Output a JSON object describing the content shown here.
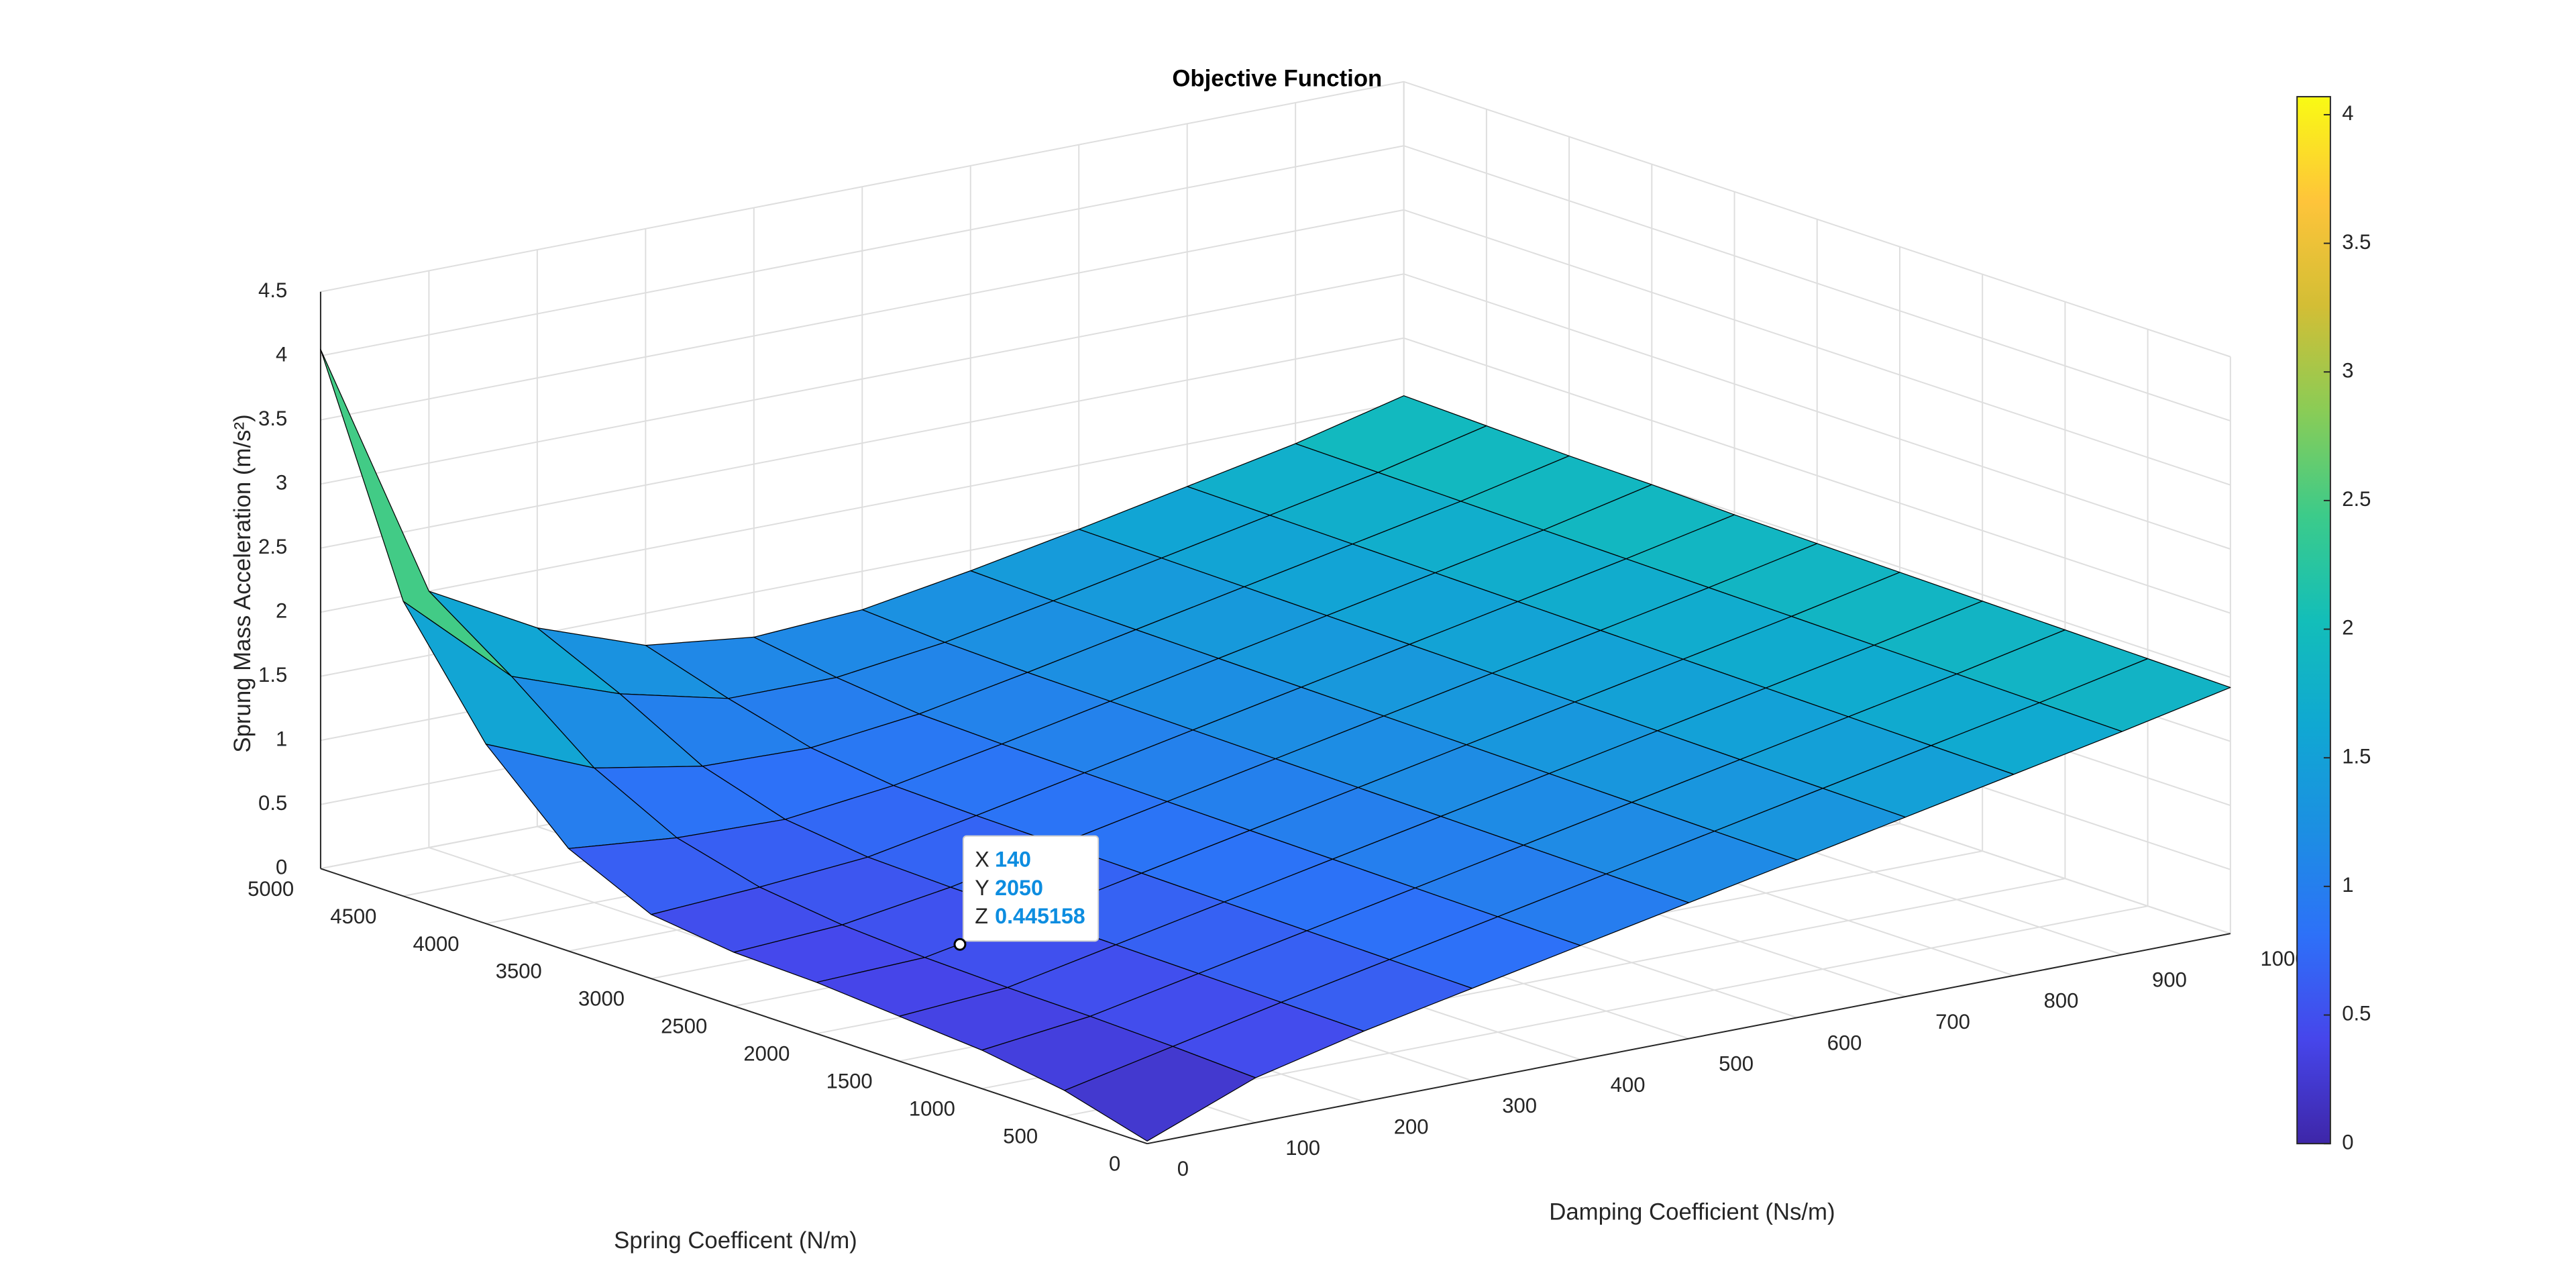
{
  "chart_data": {
    "type": "surface",
    "title": "Objective Function",
    "xlabel": "Damping Coefficient (Ns/m)",
    "ylabel": "Spring Coefficent (N/m)",
    "zlabel": "Sprung Mass Acceleration (m/s²)",
    "x": [
      0,
      100,
      200,
      300,
      400,
      500,
      600,
      700,
      800,
      900,
      1000
    ],
    "y": [
      0,
      500,
      1000,
      1500,
      2000,
      2500,
      3000,
      3500,
      4000,
      4500,
      5000
    ],
    "z": [
      [
        0.02,
        0.35,
        0.55,
        0.72,
        0.89,
        1.06,
        1.23,
        1.4,
        1.57,
        1.74,
        1.92
      ],
      [
        0.2,
        0.38,
        0.56,
        0.73,
        0.9,
        1.07,
        1.24,
        1.41,
        1.58,
        1.75,
        1.93
      ],
      [
        0.3,
        0.4,
        0.57,
        0.74,
        0.91,
        1.08,
        1.25,
        1.42,
        1.59,
        1.76,
        1.94
      ],
      [
        0.35,
        0.41,
        0.58,
        0.75,
        0.92,
        1.09,
        1.26,
        1.43,
        1.6,
        1.77,
        1.95
      ],
      [
        0.4,
        0.43,
        0.59,
        0.76,
        0.93,
        1.1,
        1.27,
        1.44,
        1.61,
        1.78,
        1.96
      ],
      [
        0.42,
        0.47,
        0.6,
        0.77,
        0.94,
        1.11,
        1.28,
        1.45,
        1.62,
        1.79,
        1.97
      ],
      [
        0.5,
        0.55,
        0.62,
        0.78,
        0.95,
        1.12,
        1.29,
        1.46,
        1.63,
        1.8,
        1.98
      ],
      [
        0.8,
        0.72,
        0.7,
        0.8,
        0.96,
        1.13,
        1.3,
        1.47,
        1.64,
        1.81,
        2.0
      ],
      [
        1.4,
        1.05,
        0.9,
        0.88,
        0.98,
        1.14,
        1.31,
        1.48,
        1.65,
        1.82,
        2.01
      ],
      [
        2.3,
        1.55,
        1.25,
        1.05,
        1.05,
        1.16,
        1.32,
        1.49,
        1.66,
        1.83,
        2.03
      ],
      [
        4.05,
        2.0,
        1.55,
        1.25,
        1.15,
        1.2,
        1.34,
        1.5,
        1.67,
        1.84,
        2.05
      ]
    ],
    "xlim": [
      0,
      1000
    ],
    "ylim": [
      0,
      5000
    ],
    "zlim": [
      0,
      4.5
    ],
    "xticks": [
      0,
      100,
      200,
      300,
      400,
      500,
      600,
      700,
      800,
      900,
      1000
    ],
    "yticks": [
      0,
      500,
      1000,
      1500,
      2000,
      2500,
      3000,
      3500,
      4000,
      4500,
      5000
    ],
    "zticks": [
      0,
      0.5,
      1,
      1.5,
      2,
      2.5,
      3,
      3.5,
      4,
      4.5
    ],
    "clim": [
      0,
      4.07
    ],
    "colorbar_ticks": [
      0,
      0.5,
      1,
      1.5,
      2,
      2.5,
      3,
      3.5,
      4
    ],
    "colormap": [
      "#3e26a8",
      "#4646eb",
      "#2d71f8",
      "#1c8fe2",
      "#10a8d2",
      "#13beb9",
      "#3ccb8a",
      "#8acc56",
      "#d3be35",
      "#fec43a",
      "#f9fa14"
    ],
    "edge_color": "#000000",
    "grid": true,
    "datatip": {
      "labels": [
        "X",
        "Y",
        "Z"
      ],
      "values": [
        140,
        2050,
        0.445158
      ]
    }
  }
}
